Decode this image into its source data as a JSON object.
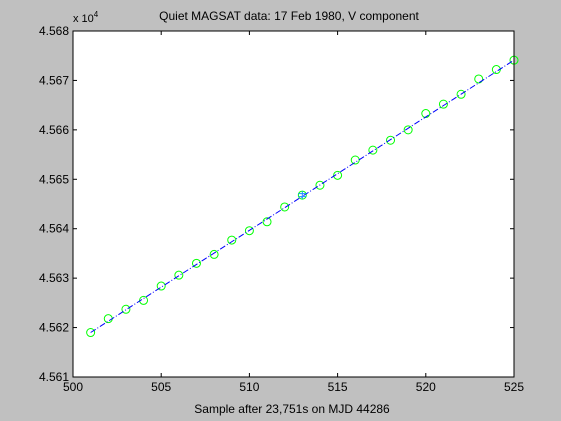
{
  "chart_data": {
    "type": "scatter",
    "title": "Quiet MAGSAT data: 17 Feb 1980, V component",
    "xlabel": "Sample after 23,751s on MJD 44286",
    "ylabel": "",
    "y_multiplier": "x 10",
    "y_multiplier_exp": "4",
    "xlim": [
      500,
      525
    ],
    "ylim": [
      4.561,
      4.568
    ],
    "x_ticks": [
      500,
      505,
      510,
      515,
      520,
      525
    ],
    "x_tick_labels": [
      "500",
      "505",
      "510",
      "515",
      "520",
      "525"
    ],
    "y_ticks": [
      4.561,
      4.562,
      4.563,
      4.564,
      4.565,
      4.566,
      4.567,
      4.568
    ],
    "y_tick_labels": [
      "4.561",
      "4.562",
      "4.563",
      "4.564",
      "4.565",
      "4.566",
      "4.567",
      "4.568"
    ],
    "grid": false,
    "legend": "none",
    "series": [
      {
        "marker": "circle",
        "color": "#00ff00",
        "x": [
          501,
          502,
          503,
          504,
          505,
          506,
          507,
          508,
          509,
          510,
          511,
          512,
          513,
          514,
          515,
          516,
          517,
          518,
          519,
          520,
          521,
          522,
          523,
          524,
          525
        ],
        "y": [
          4.5619,
          4.56218,
          4.56237,
          4.56255,
          4.56284,
          4.56306,
          4.5633,
          4.56348,
          4.56377,
          4.56396,
          4.56414,
          4.56444,
          4.56468,
          4.56488,
          4.56508,
          4.56539,
          4.56559,
          4.56579,
          4.566,
          4.56633,
          4.56652,
          4.56672,
          4.56703,
          4.56722,
          4.56741
        ]
      },
      {
        "marker": "line",
        "style": "dash-dot",
        "color": "#0000ff",
        "x": [
          501,
          525
        ],
        "y": [
          4.5619,
          4.56741
        ]
      },
      {
        "marker": "cross",
        "color": "#1e90ff",
        "x": [
          513
        ],
        "y": [
          4.56468
        ]
      }
    ]
  }
}
